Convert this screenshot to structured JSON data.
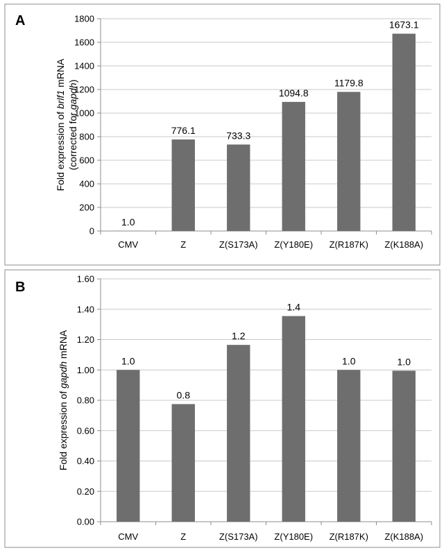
{
  "bar_color": "#6e6e6e",
  "chart_data": [
    {
      "type": "bar",
      "panel": "A",
      "ylabel_lines": [
        [
          {
            "t": "Fold expression of ",
            "i": false
          },
          {
            "t": "brlf1",
            "i": true
          },
          {
            "t": " mRNA",
            "i": false
          }
        ],
        [
          {
            "t": "(corrected for ",
            "i": false
          },
          {
            "t": "gapdh",
            "i": true
          },
          {
            "t": ")",
            "i": false
          }
        ]
      ],
      "categories": [
        "CMV",
        "Z",
        "Z(S173A)",
        "Z(Y180E)",
        "Z(R187K)",
        "Z(K188A)"
      ],
      "values": [
        1.0,
        776.1,
        733.3,
        1094.8,
        1179.8,
        1673.1
      ],
      "data_labels": [
        "1.0",
        "776.1",
        "733.3",
        "1094.8",
        "1179.8",
        "1673.1"
      ],
      "ylim": [
        0,
        1800
      ],
      "yticks": [
        0,
        200,
        400,
        600,
        800,
        1000,
        1200,
        1400,
        1600,
        1800
      ],
      "ytick_labels": [
        "0",
        "200",
        "400",
        "600",
        "800",
        "1000",
        "1200",
        "1400",
        "1600",
        "1800"
      ],
      "grid": true
    },
    {
      "type": "bar",
      "panel": "B",
      "ylabel_lines": [
        [
          {
            "t": "Fold expression of ",
            "i": false
          },
          {
            "t": "gapdh",
            "i": true
          },
          {
            "t": " mRNA",
            "i": false
          }
        ]
      ],
      "categories": [
        "CMV",
        "Z",
        "Z(S173A)",
        "Z(Y180E)",
        "Z(R187K)",
        "Z(K188A)"
      ],
      "values": [
        1.0,
        0.775,
        1.165,
        1.355,
        1.0,
        0.995
      ],
      "data_labels": [
        "1.0",
        "0.8",
        "1.2",
        "1.4",
        "1.0",
        "1.0"
      ],
      "ylim": [
        0,
        1.6
      ],
      "yticks": [
        0,
        0.2,
        0.4,
        0.6,
        0.8,
        1.0,
        1.2,
        1.4,
        1.6
      ],
      "ytick_labels": [
        "0.00",
        "0.20",
        "0.40",
        "0.60",
        "0.80",
        "1.00",
        "1.20",
        "1.40",
        "1.60"
      ],
      "grid": true
    }
  ]
}
